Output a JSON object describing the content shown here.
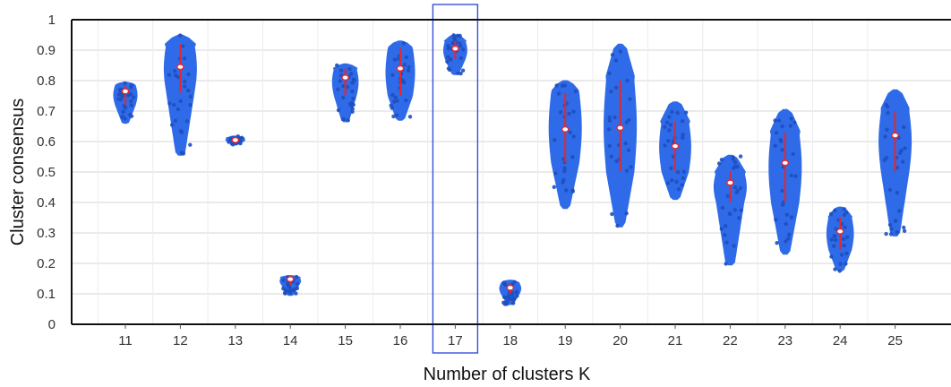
{
  "chart_data": {
    "type": "violin",
    "xlabel": "Number of clusters K",
    "ylabel": "Cluster consensus",
    "ylim": [
      0,
      1
    ],
    "yticks": [
      "0",
      "0.1",
      "0.2",
      "0.3",
      "0.4",
      "0.5",
      "0.6",
      "0.7",
      "0.8",
      "0.9",
      "1"
    ],
    "categories": [
      "11",
      "12",
      "13",
      "14",
      "15",
      "16",
      "17",
      "18",
      "19",
      "20",
      "21",
      "22",
      "23",
      "24",
      "25"
    ],
    "highlighted_category": "17",
    "grid": true,
    "colors": {
      "violin": "#2f6be8",
      "point": "#1f4fbf",
      "whisker": "#e8262b",
      "median": "#ffffff",
      "highlight": "#3a4fd8"
    },
    "distributions": [
      {
        "k": "11",
        "min": 0.66,
        "q1": 0.72,
        "median": 0.765,
        "q3": 0.785,
        "max": 0.795
      },
      {
        "k": "12",
        "min": 0.555,
        "q1": 0.76,
        "median": 0.845,
        "q3": 0.92,
        "max": 0.95
      },
      {
        "k": "13",
        "min": 0.59,
        "q1": 0.6,
        "median": 0.605,
        "q3": 0.612,
        "max": 0.618
      },
      {
        "k": "14",
        "min": 0.095,
        "q1": 0.13,
        "median": 0.148,
        "q3": 0.155,
        "max": 0.16
      },
      {
        "k": "15",
        "min": 0.665,
        "q1": 0.75,
        "median": 0.81,
        "q3": 0.84,
        "max": 0.855
      },
      {
        "k": "16",
        "min": 0.67,
        "q1": 0.75,
        "median": 0.84,
        "q3": 0.905,
        "max": 0.93
      },
      {
        "k": "17",
        "min": 0.82,
        "q1": 0.87,
        "median": 0.905,
        "q3": 0.93,
        "max": 0.95
      },
      {
        "k": "18",
        "min": 0.065,
        "q1": 0.1,
        "median": 0.12,
        "q3": 0.135,
        "max": 0.145
      },
      {
        "k": "19",
        "min": 0.38,
        "q1": 0.53,
        "median": 0.64,
        "q3": 0.76,
        "max": 0.8
      },
      {
        "k": "20",
        "min": 0.32,
        "q1": 0.5,
        "median": 0.645,
        "q3": 0.8,
        "max": 0.92
      },
      {
        "k": "21",
        "min": 0.41,
        "q1": 0.5,
        "median": 0.585,
        "q3": 0.665,
        "max": 0.73
      },
      {
        "k": "22",
        "min": 0.195,
        "q1": 0.4,
        "median": 0.465,
        "q3": 0.5,
        "max": 0.555
      },
      {
        "k": "23",
        "min": 0.23,
        "q1": 0.4,
        "median": 0.53,
        "q3": 0.63,
        "max": 0.705
      },
      {
        "k": "24",
        "min": 0.175,
        "q1": 0.245,
        "median": 0.305,
        "q3": 0.35,
        "max": 0.385
      },
      {
        "k": "25",
        "min": 0.29,
        "q1": 0.5,
        "median": 0.62,
        "q3": 0.7,
        "max": 0.77
      }
    ]
  }
}
